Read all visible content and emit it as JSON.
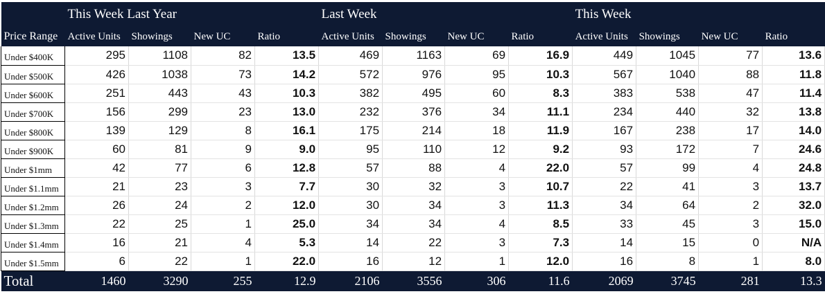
{
  "table": {
    "groups": [
      {
        "title": "This Week Last Year"
      },
      {
        "title": "Last Week"
      },
      {
        "title": "This Week"
      }
    ],
    "range_header": "Price Range",
    "sub_headers": [
      "Active Units",
      "Showings",
      "New UC",
      "Ratio"
    ],
    "rows": [
      {
        "range": "Under $400K",
        "values": [
          "295",
          "1108",
          "82",
          "13.5",
          "469",
          "1163",
          "69",
          "16.9",
          "449",
          "1045",
          "77",
          "13.6"
        ]
      },
      {
        "range": "Under $500K",
        "values": [
          "426",
          "1038",
          "73",
          "14.2",
          "572",
          "976",
          "95",
          "10.3",
          "567",
          "1040",
          "88",
          "11.8"
        ]
      },
      {
        "range": "Under $600K",
        "values": [
          "251",
          "443",
          "43",
          "10.3",
          "382",
          "495",
          "60",
          "8.3",
          "383",
          "538",
          "47",
          "11.4"
        ]
      },
      {
        "range": "Under $700K",
        "values": [
          "156",
          "299",
          "23",
          "13.0",
          "232",
          "376",
          "34",
          "11.1",
          "234",
          "440",
          "32",
          "13.8"
        ]
      },
      {
        "range": "Under $800K",
        "values": [
          "139",
          "129",
          "8",
          "16.1",
          "175",
          "214",
          "18",
          "11.9",
          "167",
          "238",
          "17",
          "14.0"
        ]
      },
      {
        "range": "Under $900K",
        "values": [
          "60",
          "81",
          "9",
          "9.0",
          "95",
          "110",
          "12",
          "9.2",
          "93",
          "172",
          "7",
          "24.6"
        ]
      },
      {
        "range": "Under $1mm",
        "values": [
          "42",
          "77",
          "6",
          "12.8",
          "57",
          "88",
          "4",
          "22.0",
          "57",
          "99",
          "4",
          "24.8"
        ]
      },
      {
        "range": "Under $1.1mm",
        "values": [
          "21",
          "23",
          "3",
          "7.7",
          "30",
          "32",
          "3",
          "10.7",
          "22",
          "41",
          "3",
          "13.7"
        ]
      },
      {
        "range": "Under $1.2mm",
        "values": [
          "26",
          "24",
          "2",
          "12.0",
          "30",
          "34",
          "3",
          "11.3",
          "34",
          "64",
          "2",
          "32.0"
        ]
      },
      {
        "range": "Under $1.3mm",
        "values": [
          "22",
          "25",
          "1",
          "25.0",
          "34",
          "34",
          "4",
          "8.5",
          "33",
          "45",
          "3",
          "15.0"
        ]
      },
      {
        "range": "Under $1.4mm",
        "values": [
          "16",
          "21",
          "4",
          "5.3",
          "14",
          "22",
          "3",
          "7.3",
          "14",
          "15",
          "0",
          "N/A"
        ]
      },
      {
        "range": "Under $1.5mm",
        "values": [
          "6",
          "22",
          "1",
          "22.0",
          "16",
          "12",
          "1",
          "12.0",
          "16",
          "8",
          "1",
          "8.0"
        ]
      }
    ],
    "total": {
      "label": "Total",
      "values": [
        "1460",
        "3290",
        "255",
        "12.9",
        "2106",
        "3556",
        "306",
        "11.6",
        "2069",
        "3745",
        "281",
        "13.3"
      ]
    }
  }
}
